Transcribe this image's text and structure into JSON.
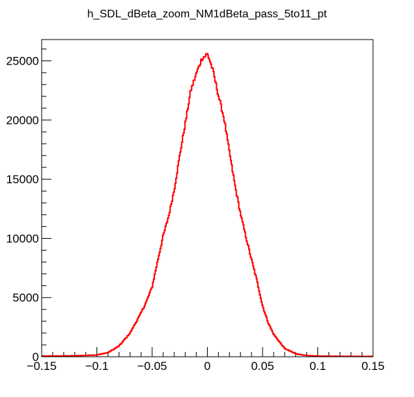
{
  "chart_data": {
    "type": "histogram",
    "title": "h_SDL_dBeta_zoom_NM1dBeta_pass_5to11_pt",
    "xlabel": "",
    "ylabel": "",
    "xlim": [
      -0.15,
      0.15
    ],
    "ylim": [
      0,
      26800
    ],
    "x_ticks": [
      -0.15,
      -0.1,
      -0.05,
      0,
      0.05,
      0.1,
      0.15
    ],
    "x_tick_labels": [
      "−0.15",
      "−0.1",
      "−0.05",
      "0",
      "0.05",
      "0.1",
      "0.15"
    ],
    "y_ticks": [
      0,
      5000,
      10000,
      15000,
      20000,
      25000
    ],
    "y_tick_labels": [
      "0",
      "5000",
      "10000",
      "15000",
      "20000",
      "25000"
    ],
    "grid": false,
    "legend": "none",
    "series_color": "#ff0000",
    "bins": 400,
    "profile": {
      "x": [
        -0.15,
        -0.12,
        -0.1,
        -0.09,
        -0.08,
        -0.07,
        -0.06,
        -0.055,
        -0.05,
        -0.045,
        -0.04,
        -0.035,
        -0.03,
        -0.025,
        -0.02,
        -0.015,
        -0.01,
        -0.005,
        -0.002,
        0.0,
        0.002,
        0.005,
        0.01,
        0.015,
        0.02,
        0.025,
        0.03,
        0.035,
        0.04,
        0.045,
        0.05,
        0.055,
        0.06,
        0.07,
        0.08,
        0.09,
        0.1,
        0.12,
        0.15
      ],
      "y": [
        60,
        80,
        150,
        350,
        900,
        2000,
        3700,
        4700,
        5900,
        8100,
        10200,
        11900,
        14100,
        17000,
        19700,
        22500,
        23900,
        25200,
        25400,
        25600,
        25100,
        24200,
        22100,
        20200,
        17300,
        14500,
        12100,
        10100,
        8200,
        6400,
        4300,
        2900,
        1900,
        700,
        250,
        100,
        60,
        40,
        30
      ]
    }
  }
}
